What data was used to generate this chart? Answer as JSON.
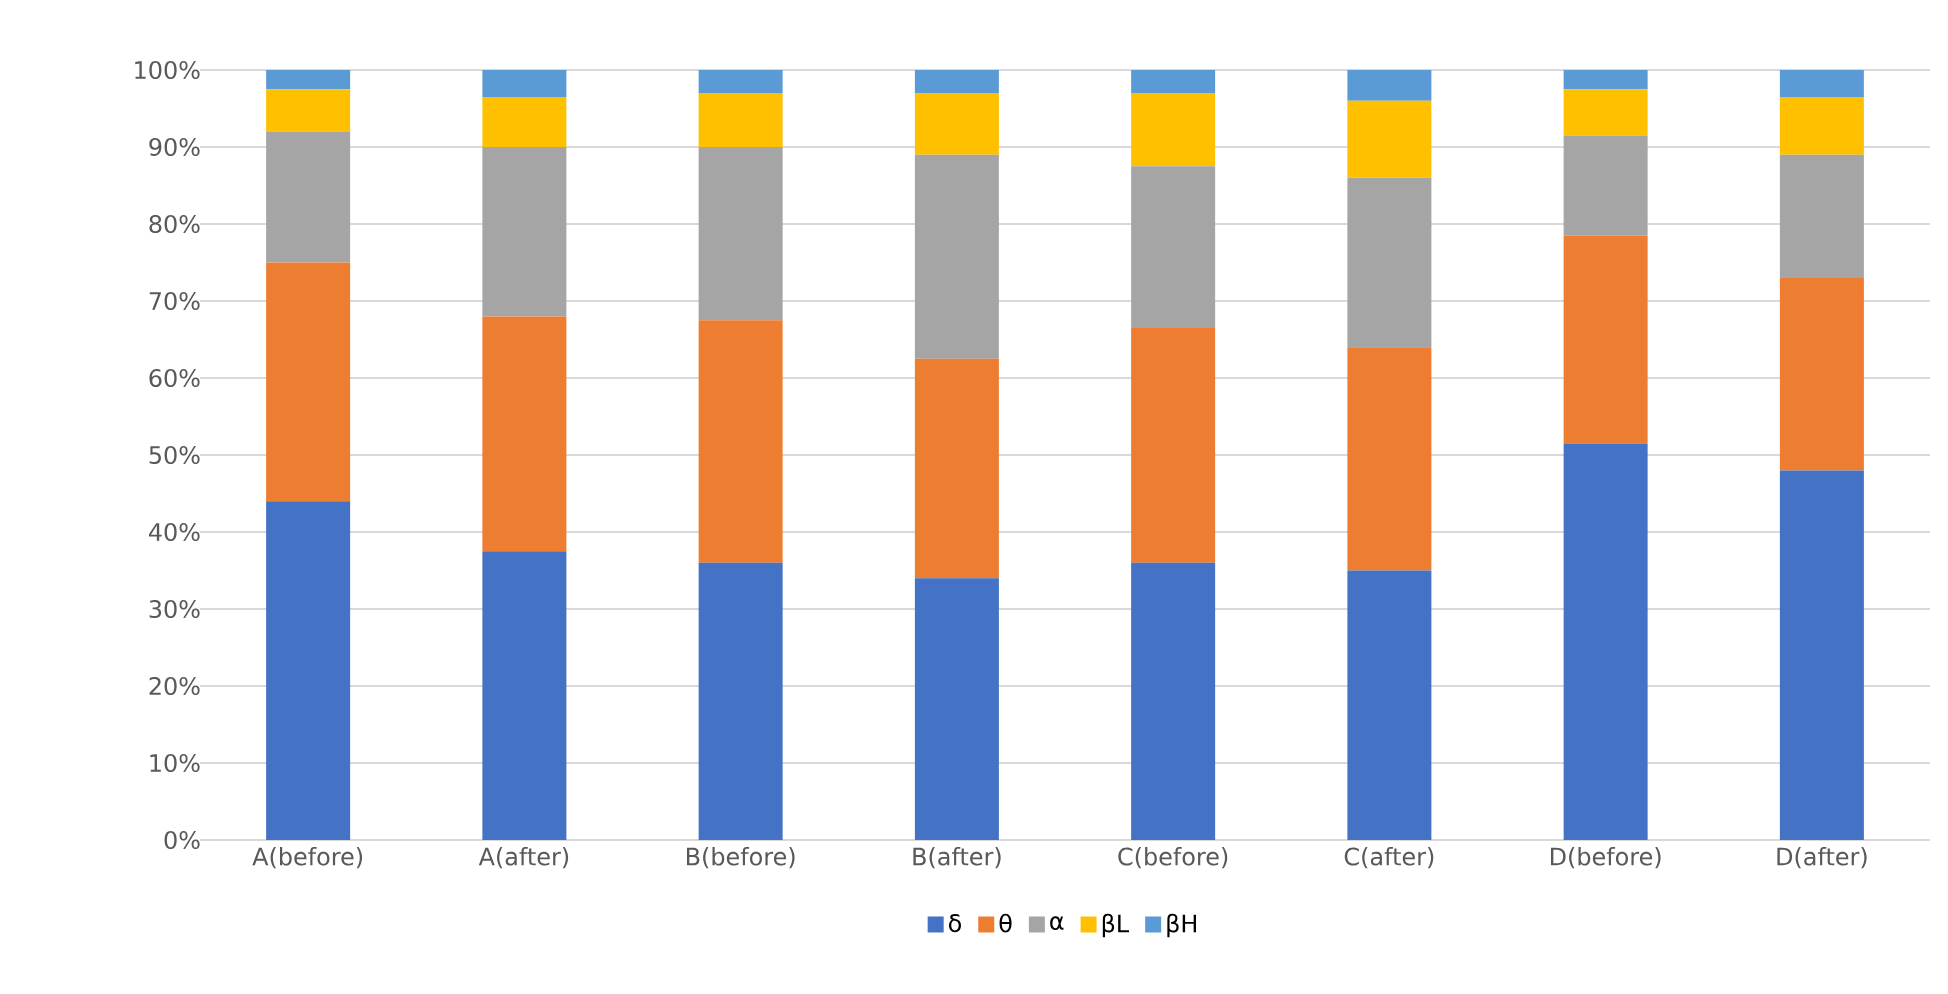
{
  "chart_data": {
    "type": "bar",
    "stacked": true,
    "categories": [
      "A(before)",
      "A(after)",
      "B(before)",
      "B(after)",
      "C(before)",
      "C(after)",
      "D(before)",
      "D(after)"
    ],
    "series": [
      {
        "name": "δ",
        "color": "#4472c4",
        "values": [
          44,
          37.5,
          36,
          34,
          36,
          35,
          51.5,
          48
        ]
      },
      {
        "name": "θ",
        "color": "#ed7d31",
        "values": [
          31,
          30.5,
          31.5,
          28.5,
          30.5,
          29,
          27,
          25
        ]
      },
      {
        "name": "α",
        "color": "#a5a5a5",
        "values": [
          17,
          22,
          22.5,
          26.5,
          21,
          22,
          13,
          16
        ]
      },
      {
        "name": "βL",
        "color": "#ffc000",
        "values": [
          5.5,
          6.5,
          7,
          8,
          9.5,
          10,
          6,
          7.5
        ]
      },
      {
        "name": "βH",
        "color": "#5b9bd5",
        "values": [
          2.5,
          3.5,
          3,
          3,
          3,
          4,
          2.5,
          3.5
        ]
      }
    ],
    "ylim": [
      0,
      100
    ],
    "yticks": [
      {
        "value": 0,
        "label": "0%"
      },
      {
        "value": 10,
        "label": "10%"
      },
      {
        "value": 20,
        "label": "20%"
      },
      {
        "value": 30,
        "label": "30%"
      },
      {
        "value": 40,
        "label": "40%"
      },
      {
        "value": 50,
        "label": "50%"
      },
      {
        "value": 60,
        "label": "60%"
      },
      {
        "value": 70,
        "label": "70%"
      },
      {
        "value": 80,
        "label": "80%"
      },
      {
        "value": 90,
        "label": "90%"
      },
      {
        "value": 100,
        "label": "100%"
      }
    ],
    "grid": "y",
    "legend": "bottom"
  }
}
